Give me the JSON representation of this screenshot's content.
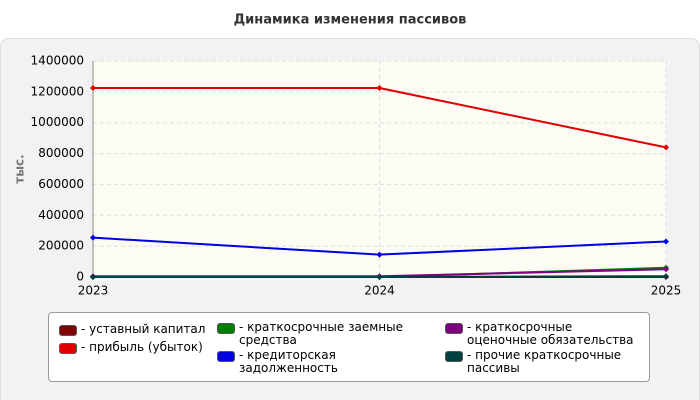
{
  "chart_data": {
    "type": "line",
    "title": "Динамика изменения пассивов",
    "y_label": "тыс.",
    "x": [
      "2023",
      "2024",
      "2025"
    ],
    "series": [
      {
        "name": "- уставный капитал",
        "color": "#800000",
        "values": [
          10,
          10,
          10
        ]
      },
      {
        "name": "- прибыль (убыток)",
        "color": "#e00000",
        "values": [
          1225000,
          1225000,
          840000
        ]
      },
      {
        "name": "- краткосрочные заемные средства",
        "color": "#008000",
        "values": [
          0,
          0,
          60000
        ]
      },
      {
        "name": "- кредиторская задолженность",
        "color": "#0000e0",
        "values": [
          255000,
          145000,
          230000
        ]
      },
      {
        "name": "- краткосрочные оценочные обязательства",
        "color": "#800080",
        "values": [
          5000,
          5000,
          50000
        ]
      },
      {
        "name": "- прочие краткосрочные пассивы",
        "color": "#004040",
        "values": [
          0,
          0,
          5000
        ]
      }
    ],
    "ylim": [
      0,
      1400000
    ],
    "yticks": [
      0,
      200000,
      400000,
      600000,
      800000,
      1000000,
      1200000,
      1400000
    ],
    "grid": true
  }
}
